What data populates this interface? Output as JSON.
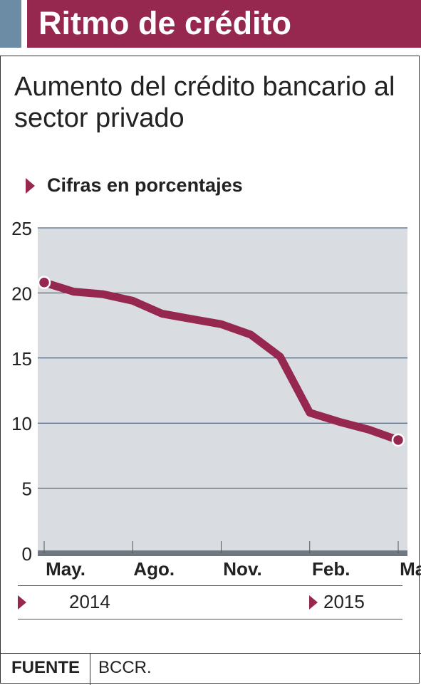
{
  "header": {
    "title": "Ritmo de crédito"
  },
  "subtitle": "Aumento del crédito bancario al sector privado",
  "units_label": "Cifras en porcentajes",
  "years": {
    "left": "2014",
    "right": "2015"
  },
  "footer": {
    "label": "FUENTE",
    "value": "BCCR."
  },
  "colors": {
    "accent": "#96284f",
    "plot_bg": "#d9dce0",
    "header_gray": "#6c8ca6",
    "axis": "#6f7780"
  },
  "chart_data": {
    "type": "line",
    "title": "Aumento del crédito bancario al sector privado",
    "ylabel": "Cifras en porcentajes",
    "xlabel": "",
    "ylim": [
      0,
      25
    ],
    "yticks": [
      0,
      5,
      10,
      15,
      20,
      25
    ],
    "x_tick_labels": [
      "May.",
      "Ago.",
      "Nov.",
      "Feb.",
      "May."
    ],
    "x": [
      "May. 2014",
      "Jun. 2014",
      "Jul. 2014",
      "Ago. 2014",
      "Sep. 2014",
      "Oct. 2014",
      "Nov. 2014",
      "Dic. 2014",
      "Ene. 2015",
      "Feb. 2015",
      "Mar. 2015",
      "Abr. 2015",
      "May. 2015"
    ],
    "series": [
      {
        "values": [
          20.8,
          20.1,
          19.9,
          19.4,
          18.4,
          18.0,
          17.6,
          16.8,
          15.1,
          10.8,
          10.1,
          9.5,
          8.7
        ]
      }
    ],
    "grid": true,
    "highlighted_points": [
      "first",
      "last"
    ]
  }
}
